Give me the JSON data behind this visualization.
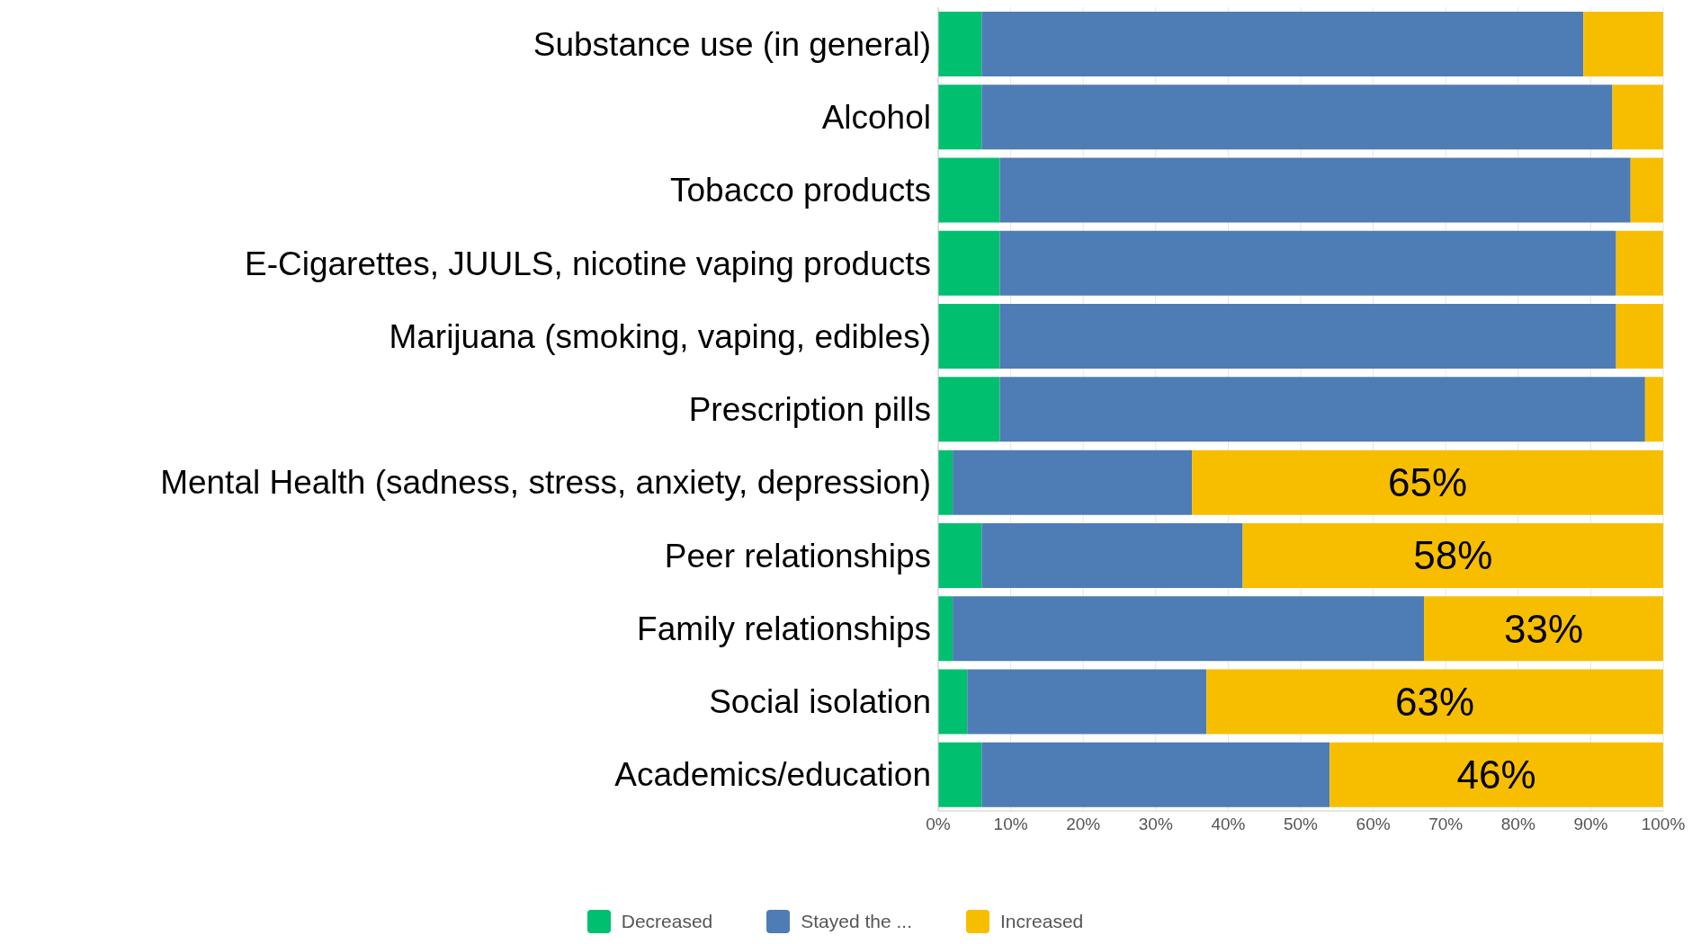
{
  "chart_data": {
    "type": "bar",
    "orientation": "horizontal",
    "stacked": true,
    "categories": [
      "Substance use (in general)",
      "Alcohol",
      "Tobacco products",
      "E-Cigarettes, JUULS, nicotine vaping products",
      "Marijuana (smoking, vaping, edibles)",
      "Prescription pills",
      "Mental Health (sadness, stress, anxiety, depression)",
      "Peer relationships",
      "Family relationships",
      "Social isolation",
      "Academics/education"
    ],
    "series": [
      {
        "name": "Decreased",
        "color": "#00bf6f",
        "values": [
          6,
          6,
          8.5,
          8.5,
          8.5,
          8.5,
          2,
          6,
          2,
          4,
          6
        ]
      },
      {
        "name": "Stayed the ...",
        "color": "#4e7cb5",
        "values": [
          83,
          87,
          87,
          85,
          85,
          89,
          33,
          36,
          65,
          33,
          48
        ]
      },
      {
        "name": "Increased",
        "color": "#f7be00",
        "values": [
          11,
          7,
          4.5,
          6.5,
          6.5,
          2.5,
          65,
          58,
          33,
          63,
          46
        ],
        "value_labels": [
          null,
          null,
          null,
          null,
          null,
          null,
          "65%",
          "58%",
          "33%",
          "63%",
          "46%"
        ]
      }
    ],
    "xlim": [
      0,
      100
    ],
    "xticks": [
      {
        "value": 0,
        "label": "0%"
      },
      {
        "value": 10,
        "label": "10%"
      },
      {
        "value": 20,
        "label": "20%"
      },
      {
        "value": 30,
        "label": "30%"
      },
      {
        "value": 40,
        "label": "40%"
      },
      {
        "value": 50,
        "label": "50%"
      },
      {
        "value": 60,
        "label": "60%"
      },
      {
        "value": 70,
        "label": "70%"
      },
      {
        "value": 80,
        "label": "80%"
      },
      {
        "value": 90,
        "label": "90%"
      },
      {
        "value": 100,
        "label": "100%"
      }
    ],
    "grid": "x",
    "legend": "bottom"
  }
}
